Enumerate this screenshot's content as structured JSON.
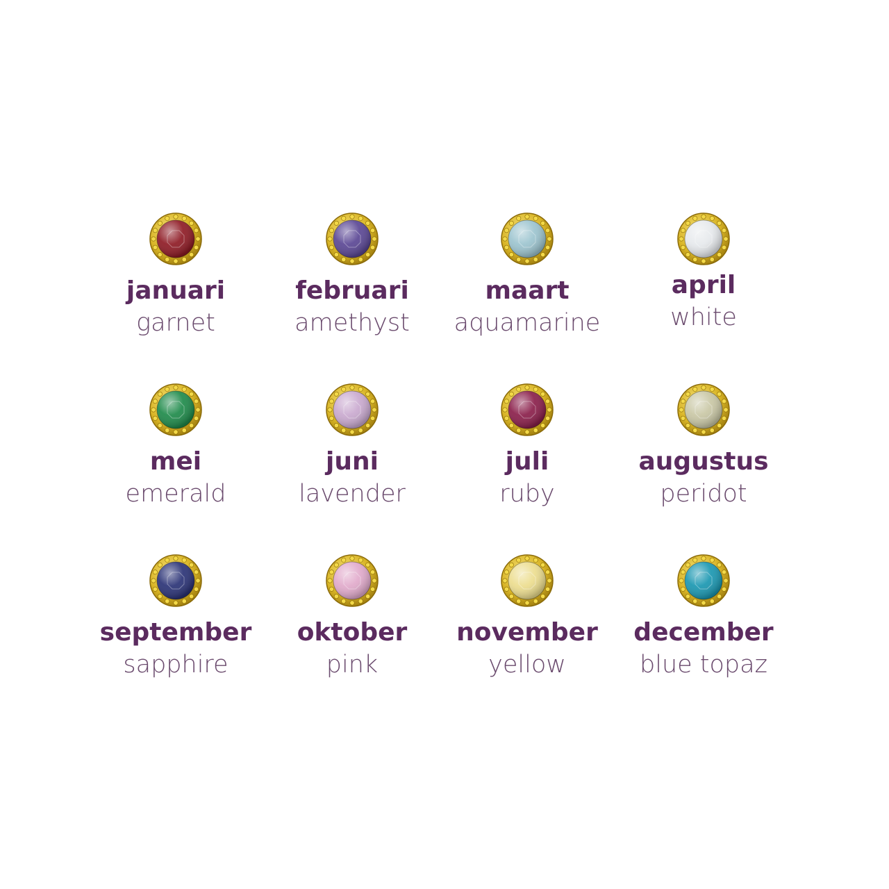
{
  "items": [
    {
      "month": "januari",
      "stone": "garnet"
    },
    {
      "month": "februari",
      "stone": "amethyst"
    },
    {
      "month": "maart",
      "stone": "aquamarine"
    },
    {
      "month": "april",
      "stone": "white"
    },
    {
      "month": "mei",
      "stone": "emerald"
    },
    {
      "month": "juni",
      "stone": "lavender"
    },
    {
      "month": "juli",
      "stone": "ruby"
    },
    {
      "month": "augustus",
      "stone": "peridot"
    },
    {
      "month": "september",
      "stone": "sapphire"
    },
    {
      "month": "oktober",
      "stone": "pink"
    },
    {
      "month": "november",
      "stone": "yellow"
    },
    {
      "month": "december",
      "stone": "blue topaz"
    }
  ]
}
